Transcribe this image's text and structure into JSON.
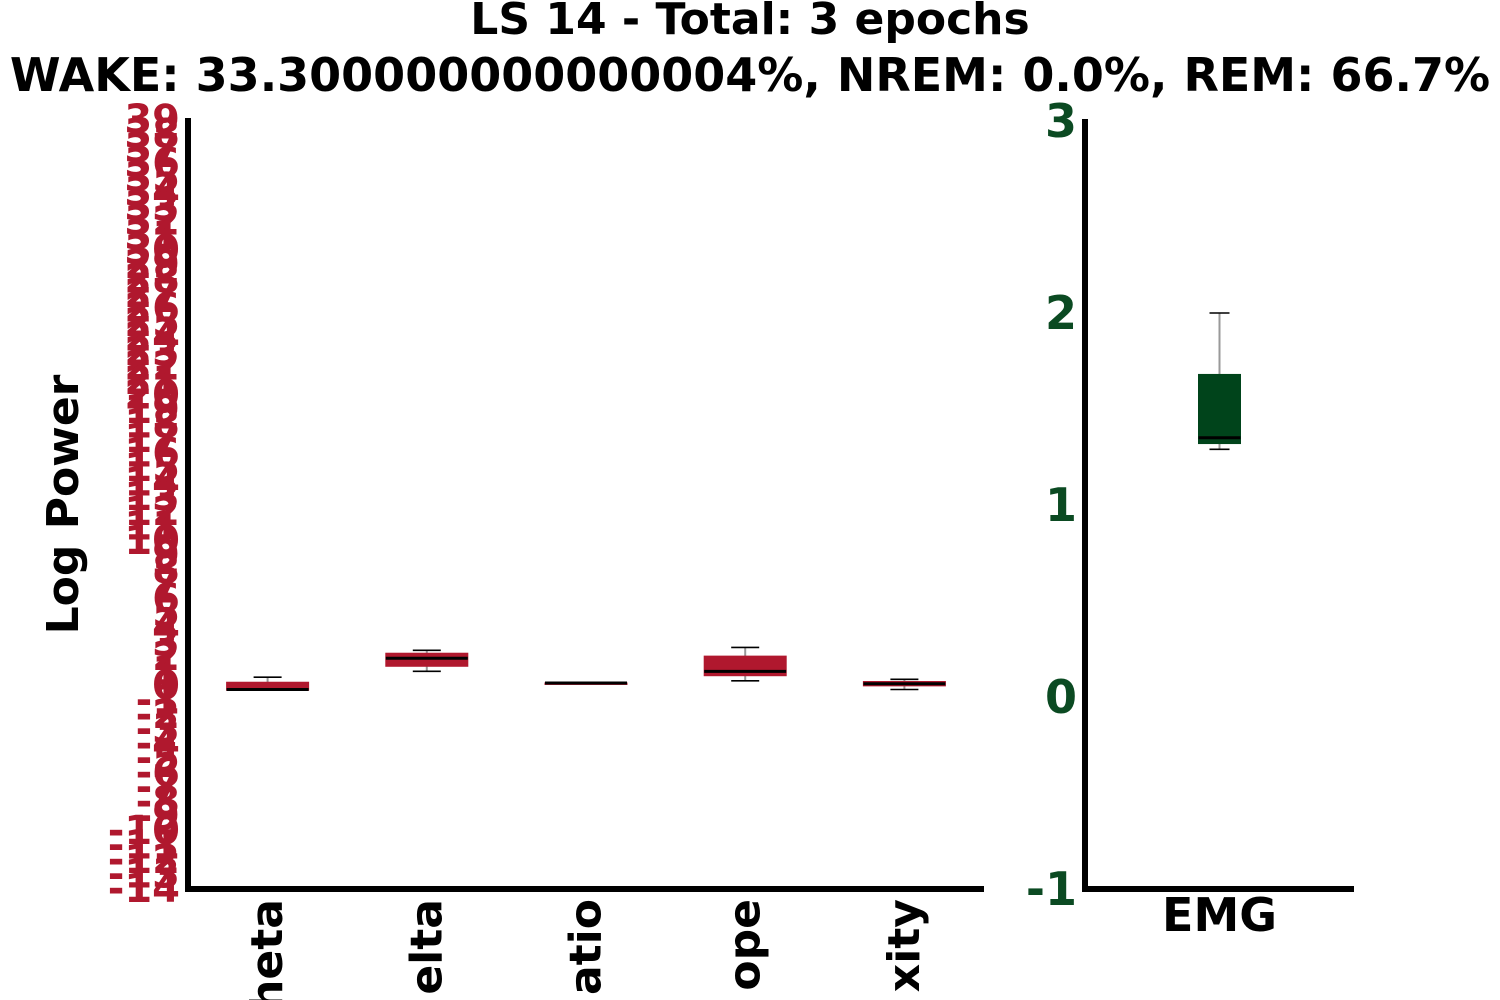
{
  "header": {
    "title": "LS 14 - Total: 3 epochs",
    "subtitle": "WAKE: 33.300000000000004%, NREM: 0.0%, REM: 66.7%"
  },
  "colors": {
    "left_box": "#b0182e",
    "left_ticks": "#b0182e",
    "right_box": "#00441b",
    "right_ticks": "#0b4a22",
    "whisker": "#999999",
    "cap": "#000000",
    "median": "#000000",
    "axis": "#000000"
  },
  "chart_data": [
    {
      "type": "box",
      "title": "",
      "xlabel": "",
      "ylabel": "Log Power",
      "ylim": [
        -14,
        39
      ],
      "yticks": [
        -14,
        -13,
        -12,
        -11,
        -10,
        -9,
        -8,
        -7,
        -6,
        -5,
        -4,
        -3,
        -2,
        -1,
        0,
        1,
        2,
        3,
        4,
        5,
        6,
        7,
        8,
        9,
        10,
        11,
        12,
        13,
        14,
        15,
        16,
        17,
        18,
        19,
        20,
        21,
        22,
        23,
        24,
        25,
        26,
        27,
        28,
        29,
        30,
        31,
        32,
        33,
        34,
        35,
        36,
        37,
        38,
        39
      ],
      "categories": [
        "theta",
        "delta",
        "ratio",
        "slope",
        "complexity"
      ],
      "categories_visible": [
        "heta",
        "elta",
        "atio",
        "ope",
        "xity"
      ],
      "boxes": [
        {
          "whislo": -0.3,
          "q1": -0.3,
          "med": -0.25,
          "q3": 0.25,
          "whishi": 0.6
        },
        {
          "whislo": 1.0,
          "q1": 1.35,
          "med": 1.9,
          "q3": 2.25,
          "whishi": 2.45
        },
        {
          "whislo": 0.2,
          "q1": 0.2,
          "med": 0.2,
          "q3": 0.2,
          "whishi": 0.2
        },
        {
          "whislo": 0.35,
          "q1": 0.7,
          "med": 1.0,
          "q3": 2.05,
          "whishi": 2.65
        },
        {
          "whislo": -0.25,
          "q1": 0.0,
          "med": 0.15,
          "q3": 0.3,
          "whishi": 0.45
        }
      ]
    },
    {
      "type": "box",
      "title": "",
      "xlabel": "",
      "ylabel": "",
      "ylim": [
        -1,
        3
      ],
      "yticks": [
        -1,
        0,
        1,
        2,
        3
      ],
      "categories": [
        "EMG"
      ],
      "boxes": [
        {
          "whislo": 1.29,
          "q1": 1.32,
          "med": 1.35,
          "q3": 1.68,
          "whishi": 2.0
        }
      ]
    }
  ]
}
